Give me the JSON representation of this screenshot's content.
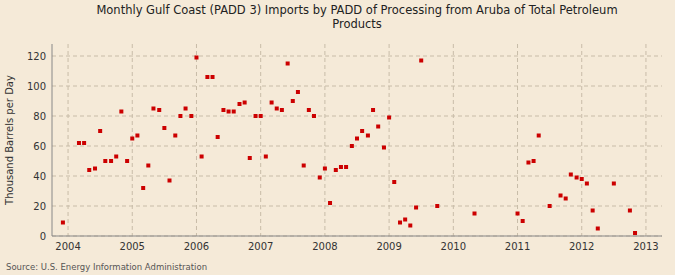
{
  "chart_data": {
    "type": "scatter",
    "title": "Monthly Gulf Coast (PADD 3) Imports by PADD of Processing from Aruba of Total Petroleum\nProducts",
    "y_label": "Thousand Barrels per Day",
    "annotations": [
      "Source: U.S. Energy Information Administration"
    ],
    "color": "#cc0000",
    "marker": "square",
    "grid": true,
    "xlim": [
      2003.75,
      2013.25
    ],
    "xticks": [
      2004,
      2005,
      2006,
      2007,
      2008,
      2009,
      2010,
      2011,
      2012,
      2013
    ],
    "ylim": [
      0,
      128
    ],
    "yticks": [
      0,
      20,
      40,
      60,
      80,
      100,
      120
    ],
    "x": [
      2003.92,
      2004.17,
      2004.25,
      2004.33,
      2004.42,
      2004.5,
      2004.58,
      2004.67,
      2004.75,
      2004.83,
      2004.92,
      2005.0,
      2005.08,
      2005.17,
      2005.25,
      2005.33,
      2005.42,
      2005.5,
      2005.58,
      2005.67,
      2005.75,
      2005.83,
      2005.92,
      2006.0,
      2006.08,
      2006.17,
      2006.25,
      2006.33,
      2006.42,
      2006.5,
      2006.58,
      2006.67,
      2006.75,
      2006.83,
      2006.92,
      2007.0,
      2007.08,
      2007.17,
      2007.25,
      2007.33,
      2007.42,
      2007.5,
      2007.58,
      2007.67,
      2007.75,
      2007.83,
      2007.92,
      2008.0,
      2008.08,
      2008.17,
      2008.25,
      2008.33,
      2008.42,
      2008.5,
      2008.58,
      2008.67,
      2008.75,
      2008.83,
      2008.92,
      2009.0,
      2009.08,
      2009.17,
      2009.25,
      2009.33,
      2009.42,
      2009.5,
      2009.75,
      2010.33,
      2011.0,
      2011.08,
      2011.17,
      2011.25,
      2011.33,
      2011.5,
      2011.67,
      2011.75,
      2011.83,
      2011.92,
      2012.0,
      2012.08,
      2012.17,
      2012.25,
      2012.5,
      2012.75,
      2012.83
    ],
    "values": [
      9,
      62,
      62,
      44,
      45,
      70,
      50,
      50,
      53,
      83,
      50,
      65,
      67,
      32,
      47,
      85,
      84,
      72,
      37,
      67,
      80,
      85,
      80,
      119,
      53,
      106,
      106,
      66,
      84,
      83,
      83,
      88,
      89,
      52,
      80,
      80,
      53,
      89,
      85,
      84,
      115,
      90,
      96,
      47,
      84,
      80,
      39,
      45,
      22,
      44,
      46,
      46,
      60,
      65,
      70,
      67,
      84,
      73,
      59,
      79,
      36,
      9,
      11,
      7,
      19,
      117,
      20,
      15,
      15,
      10,
      49,
      50,
      67,
      20,
      27,
      25,
      41,
      39,
      38,
      35,
      17,
      5,
      35,
      17,
      2
    ]
  }
}
